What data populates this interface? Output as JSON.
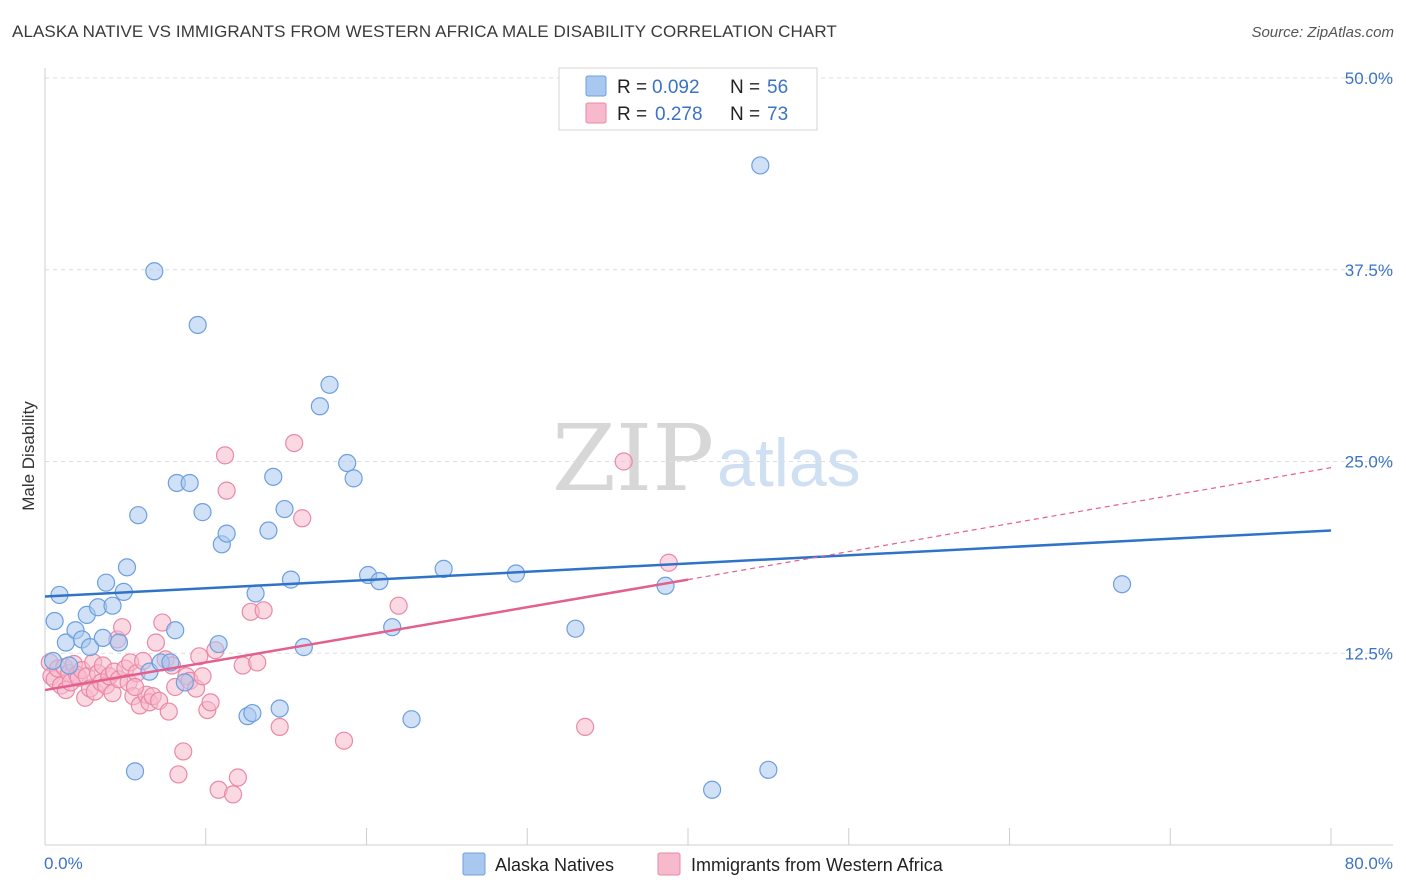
{
  "header": {
    "title": "ALASKA NATIVE VS IMMIGRANTS FROM WESTERN AFRICA MALE DISABILITY CORRELATION CHART",
    "source": "Source: ZipAtlas.com"
  },
  "watermark": {
    "zip": "ZIP",
    "atlas": "atlas"
  },
  "legend": {
    "rows": [
      {
        "r_label": "R =",
        "r_value": "0.092",
        "n_label": "N =",
        "n_value": "56",
        "color": "#a9c8f0"
      },
      {
        "r_label": "R =",
        "r_value": "0.278",
        "n_label": "N =",
        "n_value": "73",
        "color": "#f7b9cc"
      }
    ]
  },
  "colors": {
    "blue_fill": "#a9c8f0",
    "blue_stroke": "#6d9fde",
    "blue_line": "#2f73c9",
    "pink_fill": "#f7b9cc",
    "pink_stroke": "#ea88a8",
    "pink_line": "#e35f8e",
    "grid": "#dedede",
    "axis_text": "#3b73c4"
  },
  "chart_data": {
    "type": "scatter",
    "title": "ALASKA NATIVE VS IMMIGRANTS FROM WESTERN AFRICA MALE DISABILITY CORRELATION CHART",
    "xlabel": "",
    "ylabel": "Male Disability",
    "xlim": [
      0,
      80
    ],
    "ylim": [
      0,
      50
    ],
    "x_tick_labels": [
      "0.0%",
      "80.0%"
    ],
    "y_ticks": [
      12.5,
      25.0,
      37.5,
      50.0
    ],
    "y_tick_labels": [
      "12.5%",
      "25.0%",
      "37.5%",
      "50.0%"
    ],
    "grid": true,
    "legend_position": "top-center",
    "series": [
      {
        "name": "Alaska Natives",
        "color": "#a9c8f0",
        "trend": {
          "x": [
            0,
            80
          ],
          "y": [
            16.2,
            20.5
          ],
          "style": "solid"
        },
        "points": [
          [
            0.5,
            12.0
          ],
          [
            0.6,
            14.6
          ],
          [
            0.9,
            16.3
          ],
          [
            1.3,
            13.2
          ],
          [
            1.5,
            11.7
          ],
          [
            1.9,
            14.0
          ],
          [
            2.3,
            13.4
          ],
          [
            2.6,
            15.0
          ],
          [
            2.8,
            12.9
          ],
          [
            3.3,
            15.5
          ],
          [
            3.6,
            13.5
          ],
          [
            3.8,
            17.1
          ],
          [
            4.2,
            15.6
          ],
          [
            4.6,
            13.2
          ],
          [
            4.9,
            16.5
          ],
          [
            5.1,
            18.1
          ],
          [
            5.6,
            4.8
          ],
          [
            5.8,
            21.5
          ],
          [
            6.5,
            11.3
          ],
          [
            6.8,
            37.4
          ],
          [
            7.2,
            11.9
          ],
          [
            7.8,
            11.9
          ],
          [
            8.1,
            14.0
          ],
          [
            8.2,
            23.6
          ],
          [
            8.7,
            10.6
          ],
          [
            9.0,
            23.6
          ],
          [
            9.5,
            33.9
          ],
          [
            9.8,
            21.7
          ],
          [
            10.8,
            13.1
          ],
          [
            11.0,
            19.6
          ],
          [
            11.3,
            20.3
          ],
          [
            12.6,
            8.4
          ],
          [
            12.9,
            8.6
          ],
          [
            13.1,
            16.4
          ],
          [
            13.9,
            20.5
          ],
          [
            14.2,
            24.0
          ],
          [
            14.6,
            8.9
          ],
          [
            14.9,
            21.9
          ],
          [
            15.3,
            17.3
          ],
          [
            16.1,
            12.9
          ],
          [
            17.1,
            28.6
          ],
          [
            17.7,
            30.0
          ],
          [
            18.8,
            24.9
          ],
          [
            19.2,
            23.9
          ],
          [
            20.1,
            17.6
          ],
          [
            20.8,
            17.2
          ],
          [
            21.6,
            14.2
          ],
          [
            22.8,
            8.2
          ],
          [
            24.8,
            18.0
          ],
          [
            29.3,
            17.7
          ],
          [
            33.0,
            14.1
          ],
          [
            38.6,
            16.9
          ],
          [
            41.5,
            3.6
          ],
          [
            44.5,
            44.3
          ],
          [
            45.0,
            4.9
          ],
          [
            67.0,
            17.0
          ]
        ]
      },
      {
        "name": "Immigrants from Western Africa",
        "color": "#f7b9cc",
        "trend": {
          "x": [
            0,
            40
          ],
          "y": [
            10.1,
            17.3
          ],
          "style": "solid",
          "extension": {
            "x": [
              40,
              80
            ],
            "y": [
              17.3,
              24.6
            ],
            "style": "dashed"
          }
        },
        "points": [
          [
            0.3,
            11.9
          ],
          [
            0.4,
            11.0
          ],
          [
            0.6,
            10.8
          ],
          [
            0.8,
            11.5
          ],
          [
            1.0,
            10.4
          ],
          [
            1.2,
            11.6
          ],
          [
            1.3,
            10.1
          ],
          [
            1.5,
            11.2
          ],
          [
            1.6,
            10.6
          ],
          [
            1.8,
            11.8
          ],
          [
            2.0,
            11.1
          ],
          [
            2.1,
            10.9
          ],
          [
            2.3,
            11.4
          ],
          [
            2.5,
            9.6
          ],
          [
            2.6,
            11.0
          ],
          [
            2.8,
            10.2
          ],
          [
            3.0,
            11.9
          ],
          [
            3.1,
            10.0
          ],
          [
            3.3,
            11.2
          ],
          [
            3.5,
            10.6
          ],
          [
            3.6,
            11.7
          ],
          [
            3.8,
            10.4
          ],
          [
            4.0,
            11.0
          ],
          [
            4.2,
            9.9
          ],
          [
            4.3,
            11.3
          ],
          [
            4.5,
            13.4
          ],
          [
            4.6,
            10.8
          ],
          [
            4.8,
            14.2
          ],
          [
            5.0,
            11.5
          ],
          [
            5.2,
            10.6
          ],
          [
            5.3,
            11.9
          ],
          [
            5.5,
            9.7
          ],
          [
            5.7,
            11.2
          ],
          [
            5.9,
            9.1
          ],
          [
            6.1,
            12.0
          ],
          [
            6.3,
            9.8
          ],
          [
            6.5,
            9.3
          ],
          [
            6.7,
            9.7
          ],
          [
            6.9,
            13.2
          ],
          [
            7.1,
            9.4
          ],
          [
            7.3,
            14.5
          ],
          [
            7.5,
            12.1
          ],
          [
            7.7,
            8.7
          ],
          [
            7.9,
            11.7
          ],
          [
            8.1,
            10.3
          ],
          [
            8.3,
            4.6
          ],
          [
            8.6,
            6.1
          ],
          [
            8.8,
            11.0
          ],
          [
            9.0,
            10.7
          ],
          [
            9.4,
            10.2
          ],
          [
            9.6,
            12.3
          ],
          [
            10.1,
            8.8
          ],
          [
            10.3,
            9.3
          ],
          [
            10.6,
            12.7
          ],
          [
            10.8,
            3.6
          ],
          [
            11.2,
            25.4
          ],
          [
            11.3,
            23.1
          ],
          [
            11.7,
            3.3
          ],
          [
            12.0,
            4.4
          ],
          [
            12.3,
            11.7
          ],
          [
            12.8,
            15.2
          ],
          [
            13.2,
            11.9
          ],
          [
            13.6,
            15.3
          ],
          [
            14.6,
            7.7
          ],
          [
            15.5,
            26.2
          ],
          [
            16.0,
            21.3
          ],
          [
            18.6,
            6.8
          ],
          [
            22.0,
            15.6
          ],
          [
            36.0,
            25.0
          ],
          [
            33.6,
            7.7
          ],
          [
            38.8,
            18.4
          ],
          [
            5.6,
            10.3
          ],
          [
            9.8,
            11.0
          ]
        ]
      }
    ]
  }
}
